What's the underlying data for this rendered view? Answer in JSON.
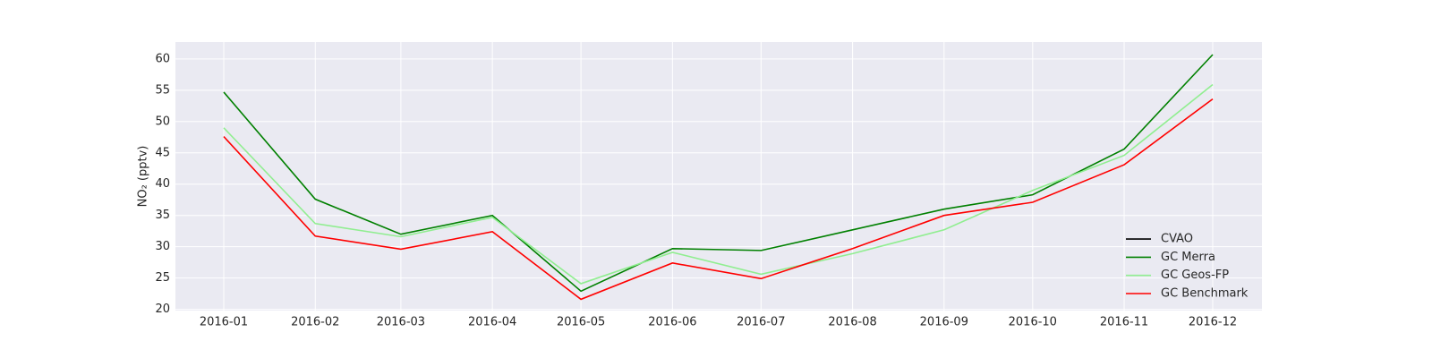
{
  "chart_data": {
    "type": "line",
    "y_label": "NO₂ (pptv)",
    "x": [
      "2016-01",
      "2016-02",
      "2016-03",
      "2016-04",
      "2016-05",
      "2016-06",
      "2016-07",
      "2016-08",
      "2016-09",
      "2016-10",
      "2016-11",
      "2016-12"
    ],
    "xticks": [
      "2016-01",
      "2016-02",
      "2016-03",
      "2016-04",
      "2016-05",
      "2016-06",
      "2016-07",
      "2016-08",
      "2016-09",
      "2016-10",
      "2016-11",
      "2016-12"
    ],
    "series": [
      {
        "name": "CVAO",
        "color": "#000000",
        "values": [
          null,
          null,
          null,
          null,
          null,
          null,
          null,
          null,
          null,
          null,
          null,
          null
        ]
      },
      {
        "name": "GC Merra",
        "color": "#008000",
        "values": [
          54.7,
          37.6,
          32.0,
          35.0,
          22.9,
          29.7,
          29.4,
          32.7,
          36.0,
          38.3,
          45.6,
          60.7
        ]
      },
      {
        "name": "GC Geos-FP",
        "color": "#90ee90",
        "values": [
          49.0,
          33.7,
          31.6,
          34.7,
          24.1,
          29.1,
          25.6,
          28.9,
          32.7,
          39.0,
          44.6,
          55.9
        ]
      },
      {
        "name": "GC Benchmark",
        "color": "#ff0000",
        "values": [
          47.6,
          31.7,
          29.6,
          32.4,
          21.6,
          27.4,
          24.9,
          29.7,
          35.0,
          37.1,
          43.1,
          53.6
        ]
      }
    ],
    "ylim": [
      19.8,
      62.7
    ],
    "yticks": [
      20,
      25,
      30,
      35,
      40,
      45,
      50,
      55,
      60
    ],
    "grid": true,
    "legend": "lower right"
  }
}
